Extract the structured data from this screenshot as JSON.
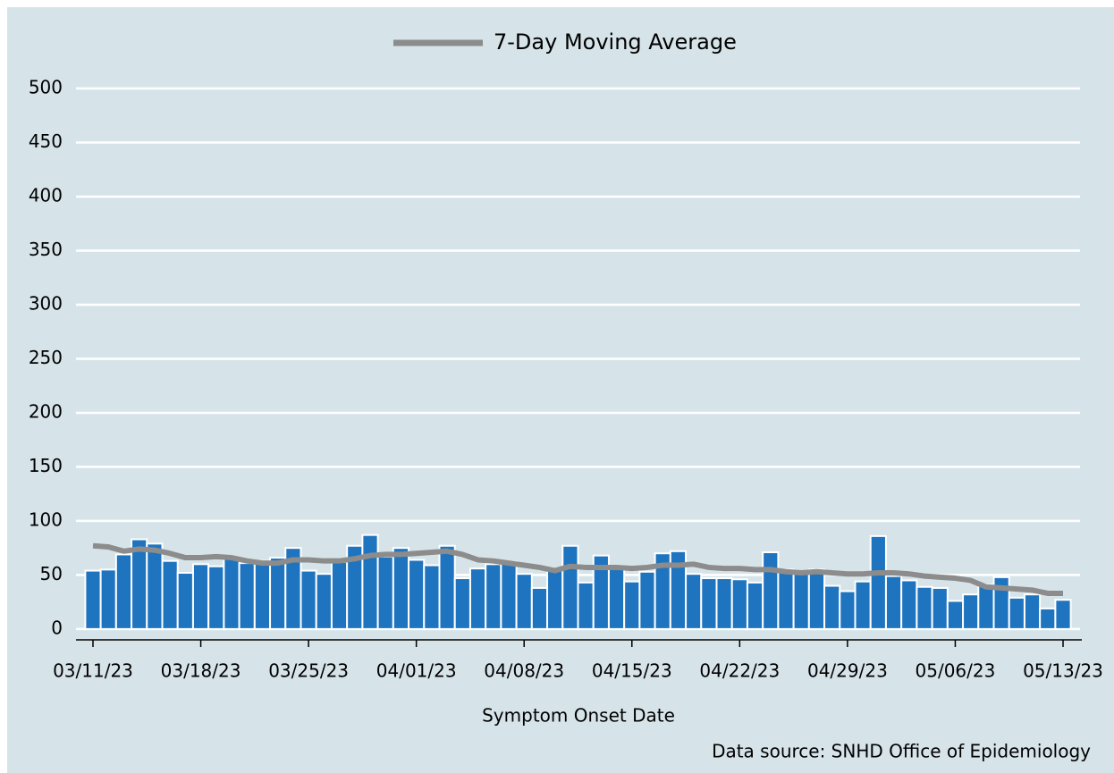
{
  "chart_data": {
    "type": "bar",
    "x_label": "Symptom Onset Date",
    "source": "Data source: SNHD Office of Epidemiology",
    "categories": [
      "03/11/23",
      null,
      null,
      null,
      null,
      null,
      null,
      "03/18/23",
      null,
      null,
      null,
      null,
      null,
      null,
      "03/25/23",
      null,
      null,
      null,
      null,
      null,
      null,
      "04/01/23",
      null,
      null,
      null,
      null,
      null,
      null,
      "04/08/23",
      null,
      null,
      null,
      null,
      null,
      null,
      "04/15/23",
      null,
      null,
      null,
      null,
      null,
      null,
      "04/22/23",
      null,
      null,
      null,
      null,
      null,
      null,
      "04/29/23",
      null,
      null,
      null,
      null,
      null,
      null,
      "05/06/23",
      null,
      null,
      null,
      null,
      null,
      null,
      "05/13/23"
    ],
    "series": [
      {
        "type": "bar",
        "color": "#1f74c0",
        "values": [
          54,
          55,
          69,
          83,
          79,
          63,
          52,
          60,
          58,
          66,
          61,
          63,
          66,
          75,
          54,
          51,
          62,
          77,
          87,
          67,
          75,
          64,
          59,
          77,
          47,
          56,
          60,
          62,
          51,
          38,
          55,
          77,
          43,
          68,
          57,
          44,
          53,
          70,
          72,
          51,
          47,
          47,
          46,
          43,
          71,
          55,
          52,
          55,
          40,
          35,
          44,
          86,
          49,
          45,
          39,
          38,
          26,
          32,
          41,
          48,
          29,
          32,
          19,
          27
        ]
      },
      {
        "type": "line",
        "name": "7-Day Moving Average",
        "color": "#8c8c8c",
        "values": [
          77,
          76,
          72,
          74,
          73,
          70,
          66,
          66,
          67,
          66,
          63,
          61,
          61,
          64,
          64,
          63,
          63,
          65,
          68,
          69,
          69,
          70,
          71,
          72,
          69,
          64,
          63,
          61,
          59,
          57,
          54,
          58,
          57,
          57,
          57,
          56,
          57,
          59,
          59,
          60,
          57,
          56,
          56,
          55,
          55,
          53,
          52,
          53,
          52,
          51,
          51,
          52,
          52,
          51,
          49,
          48,
          47,
          45,
          39,
          38,
          37,
          36,
          33,
          33
        ]
      }
    ],
    "ylim": [
      -10,
      500
    ],
    "yticks": [
      0,
      50,
      100,
      150,
      200,
      250,
      300,
      350,
      400,
      450,
      500
    ],
    "grid": true,
    "legend": "top"
  }
}
